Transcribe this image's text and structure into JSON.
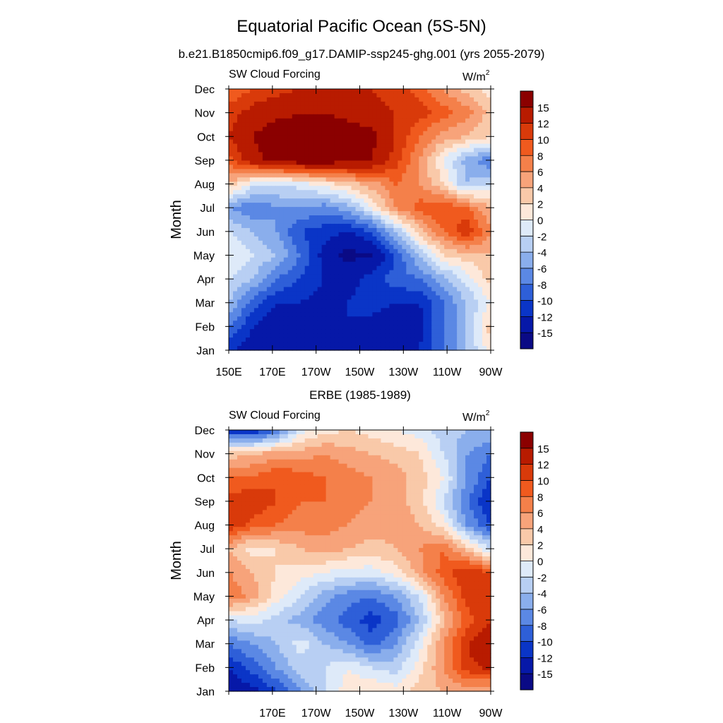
{
  "figure": {
    "title": "Equatorial Pacific Ocean (5S-5N)",
    "subtitle": "b.e21.B1850cmip6.f09_g17.DAMIP-ssp245-ghg.001 (yrs 2055-2079)"
  },
  "chart_data": [
    {
      "type": "heatmap",
      "panel": "model",
      "title": "",
      "left_label": "SW Cloud Forcing",
      "units_base": "W/m",
      "units_exp": "2",
      "ylabel": "Month",
      "xlabel": "",
      "y_ticks": [
        "Jan",
        "Feb",
        "Mar",
        "Apr",
        "May",
        "Jun",
        "Jul",
        "Aug",
        "Sep",
        "Oct",
        "Nov",
        "Dec"
      ],
      "x_ticks": [
        "150E",
        "170E",
        "170W",
        "150W",
        "130W",
        "110W",
        "90W"
      ],
      "x_range": [
        "150E",
        "90W"
      ],
      "y_range": [
        "Jan",
        "Dec"
      ],
      "value_field": [
        [
          -12,
          -13,
          -14,
          -15,
          -14,
          -13,
          -14,
          -14,
          -12,
          -8,
          -4,
          1
        ],
        [
          -8,
          -12,
          -14,
          -15,
          -14,
          -12,
          -13,
          -14,
          -13,
          -8,
          -4,
          3
        ],
        [
          -4,
          -9,
          -12,
          -12,
          -13,
          -12,
          -11,
          -12,
          -12,
          -8,
          -4,
          0
        ],
        [
          -2,
          -4,
          -8,
          -10,
          -12,
          -13,
          -11,
          -9,
          -8,
          -5,
          -1,
          3
        ],
        [
          0,
          -2,
          -4,
          -8,
          -13,
          -16,
          -15,
          -10,
          -4,
          2,
          3,
          4
        ],
        [
          -2,
          -4,
          -6,
          -10,
          -11,
          -12,
          -10,
          -4,
          3,
          8,
          12,
          6
        ],
        [
          -6,
          -8,
          -6,
          -6,
          -7,
          -5,
          0,
          6,
          9,
          10,
          8,
          4
        ],
        [
          4,
          -1,
          -2,
          -1,
          1,
          3,
          5,
          8,
          6,
          2,
          -4,
          -2
        ],
        [
          9,
          14,
          16,
          17,
          17,
          16,
          15,
          11,
          6,
          0,
          -5,
          -8
        ],
        [
          12,
          15,
          17,
          17,
          17,
          17,
          16,
          12,
          8,
          5,
          4,
          2
        ],
        [
          11,
          13,
          14,
          15,
          15,
          14,
          13,
          12,
          11,
          9,
          7,
          3
        ],
        [
          8,
          10,
          11,
          12,
          12,
          12,
          12,
          11,
          9,
          6,
          3,
          1
        ]
      ]
    },
    {
      "type": "heatmap",
      "panel": "observations",
      "title": "ERBE (1985-1989)",
      "left_label": "SW Cloud Forcing",
      "units_base": "W/m",
      "units_exp": "2",
      "ylabel": "Month",
      "xlabel": "",
      "y_ticks": [
        "Jan",
        "Feb",
        "Mar",
        "Apr",
        "May",
        "Jun",
        "Jul",
        "Aug",
        "Sep",
        "Oct",
        "Nov",
        "Dec"
      ],
      "x_ticks": [
        "170E",
        "170W",
        "150W",
        "130W",
        "110W",
        "90W"
      ],
      "x_range": [
        "150E",
        "90W"
      ],
      "y_range": [
        "Jan",
        "Dec"
      ],
      "value_field": [
        [
          -14,
          -13,
          -10,
          -6,
          -2,
          1,
          2,
          1,
          3,
          4,
          5,
          4
        ],
        [
          -12,
          -9,
          -6,
          -3,
          -2,
          0,
          -2,
          -3,
          1,
          6,
          11,
          13
        ],
        [
          -8,
          -6,
          -4,
          -1,
          -4,
          -6,
          -9,
          -6,
          -1,
          6,
          12,
          15
        ],
        [
          -2,
          -1,
          -3,
          -5,
          -7,
          -9,
          -11,
          -9,
          -4,
          3,
          9,
          12
        ],
        [
          8,
          5,
          1,
          -2,
          -5,
          -7,
          -8,
          -6,
          -2,
          6,
          11,
          12
        ],
        [
          6,
          4,
          2,
          1,
          0,
          -1,
          -1,
          1,
          5,
          9,
          12,
          10
        ],
        [
          4,
          1,
          2,
          4,
          5,
          4,
          3,
          4,
          6,
          8,
          3,
          -2
        ],
        [
          12,
          9,
          8,
          7,
          7,
          6,
          5,
          5,
          4,
          1,
          -6,
          -10
        ],
        [
          11,
          12,
          10,
          8,
          8,
          7,
          6,
          5,
          3,
          -2,
          -8,
          -12
        ],
        [
          8,
          8,
          10,
          9,
          8,
          7,
          6,
          5,
          3,
          0,
          -6,
          -10
        ],
        [
          3,
          4,
          5,
          5,
          6,
          5,
          4,
          3,
          2,
          -2,
          -6,
          -8
        ],
        [
          -12,
          -12,
          -8,
          -1,
          1,
          2,
          1,
          0,
          -1,
          -3,
          -4,
          -4
        ]
      ]
    }
  ],
  "colorbar": {
    "labels": [
      "15",
      "12",
      "10",
      "8",
      "6",
      "4",
      "2",
      "0",
      "-2",
      "-4",
      "-6",
      "-8",
      "-10",
      "-12",
      "-15"
    ],
    "colors": [
      "#8b0000",
      "#b81b00",
      "#d93a0a",
      "#f05a1e",
      "#f4804a",
      "#f7a37a",
      "#f9c9a9",
      "#fde8da",
      "#deeaf9",
      "#b8cff3",
      "#8aaeec",
      "#5b88e4",
      "#2e5fd8",
      "#0a35c7",
      "#0618a8",
      "#0a0a85"
    ]
  }
}
